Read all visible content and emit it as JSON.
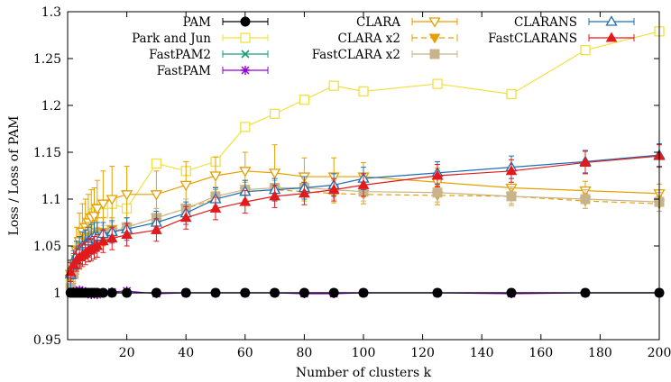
{
  "chart_data": {
    "type": "line",
    "title": "",
    "xlabel": "Number of clusters k",
    "ylabel": "Loss / Loss of PAM",
    "xlim": [
      0,
      200
    ],
    "ylim": [
      0.95,
      1.3
    ],
    "xticks": [
      20,
      40,
      60,
      80,
      100,
      120,
      140,
      160,
      180,
      200
    ],
    "yticks": [
      0.95,
      1,
      1.05,
      1.1,
      1.15,
      1.2,
      1.25,
      1.3
    ],
    "ytick_labels": [
      "0.95",
      "1",
      "1.05",
      "1.1",
      "1.15",
      "1.2",
      "1.25",
      "1.3"
    ],
    "grid": false,
    "legend_position": "top",
    "series": [
      {
        "name": "PAM",
        "color": "#000000",
        "marker": "circle-filled",
        "dashed": false,
        "x": [
          1,
          2,
          3,
          4,
          5,
          6,
          7,
          8,
          9,
          10,
          12,
          15,
          20,
          30,
          40,
          50,
          60,
          70,
          80,
          90,
          100,
          125,
          150,
          175,
          200
        ],
        "y": [
          1,
          1,
          1,
          1,
          1,
          1,
          1,
          1,
          1,
          1,
          1,
          1,
          1,
          1,
          1,
          1,
          1,
          1,
          1,
          1,
          1,
          1,
          1,
          1,
          1
        ],
        "err": [
          0,
          0,
          0,
          0,
          0,
          0,
          0,
          0,
          0,
          0,
          0,
          0,
          0,
          0,
          0,
          0,
          0,
          0,
          0,
          0,
          0,
          0,
          0,
          0,
          0
        ]
      },
      {
        "name": "Park and Jun",
        "color": "#f0e040",
        "marker": "square-open",
        "dashed": false,
        "x": [
          1,
          2,
          3,
          4,
          5,
          6,
          7,
          8,
          9,
          10,
          12,
          15,
          20,
          30,
          40,
          50,
          60,
          70,
          80,
          90,
          100,
          125,
          150,
          175,
          200
        ],
        "y": [
          1.01,
          1.02,
          1.035,
          1.05,
          1.06,
          1.065,
          1.075,
          1.08,
          1.085,
          1.09,
          1.085,
          1.095,
          1.09,
          1.138,
          1.13,
          1.14,
          1.177,
          1.191,
          1.206,
          1.221,
          1.215,
          1.223,
          1.212,
          1.259,
          1.279
        ],
        "err": [
          0.004,
          0.004,
          0.004,
          0.004,
          0.004,
          0.004,
          0.004,
          0.004,
          0.004,
          0.004,
          0.004,
          0.004,
          0.004,
          0.004,
          0.004,
          0.004,
          0.004,
          0.004,
          0.004,
          0.004,
          0.004,
          0.004,
          0.004,
          0.004,
          0.004
        ]
      },
      {
        "name": "FastPAM2",
        "color": "#1a9e77",
        "marker": "x",
        "dashed": false,
        "x": [
          1,
          2,
          3,
          4,
          5,
          6,
          7,
          8,
          9,
          10,
          12,
          15,
          20,
          30,
          40,
          50,
          60,
          70,
          80,
          90,
          100,
          125,
          150,
          175,
          200
        ],
        "y": [
          1,
          1,
          1.001,
          1,
          1,
          1,
          1,
          1,
          1,
          1,
          1,
          1,
          1,
          1,
          1,
          1,
          1,
          1,
          1,
          1,
          1,
          1,
          1,
          1,
          1
        ],
        "err": [
          0.002,
          0.002,
          0.002,
          0.002,
          0.002,
          0.002,
          0.002,
          0.002,
          0.002,
          0.002,
          0.002,
          0.002,
          0.002,
          0.002,
          0.002,
          0.002,
          0.002,
          0.002,
          0.002,
          0.002,
          0.002,
          0.002,
          0.002,
          0.002,
          0.002
        ]
      },
      {
        "name": "FastPAM",
        "color": "#9400d3",
        "marker": "star",
        "dashed": false,
        "x": [
          1,
          2,
          3,
          4,
          5,
          6,
          7,
          8,
          9,
          10,
          12,
          15,
          20,
          30,
          40,
          50,
          60,
          70,
          80,
          90,
          100,
          125,
          150,
          175,
          200
        ],
        "y": [
          1,
          1.001,
          1.002,
          1.003,
          1.002,
          1.001,
          0.999,
          0.998,
          0.999,
          0.998,
          1,
          1.001,
          1.002,
          0.999,
          1,
          1,
          1,
          1,
          0.999,
          0.999,
          1,
          1,
          0.999,
          1,
          1
        ],
        "err": [
          0.002,
          0.002,
          0.002,
          0.002,
          0.002,
          0.002,
          0.002,
          0.002,
          0.002,
          0.002,
          0.002,
          0.002,
          0.002,
          0.002,
          0.002,
          0.002,
          0.002,
          0.002,
          0.002,
          0.002,
          0.002,
          0.002,
          0.002,
          0.002,
          0.002
        ]
      },
      {
        "name": "CLARA",
        "color": "#e69f00",
        "marker": "triangle-down-open",
        "dashed": false,
        "x": [
          1,
          2,
          3,
          4,
          5,
          6,
          7,
          8,
          9,
          10,
          12,
          15,
          20,
          30,
          40,
          50,
          60,
          70,
          80,
          90,
          100,
          125,
          150,
          175,
          200
        ],
        "y": [
          1.02,
          1.03,
          1.045,
          1.055,
          1.065,
          1.07,
          1.075,
          1.08,
          1.082,
          1.09,
          1.095,
          1.1,
          1.105,
          1.105,
          1.115,
          1.125,
          1.13,
          1.128,
          1.124,
          1.124,
          1.124,
          1.118,
          1.112,
          1.109,
          1.106
        ],
        "err": [
          0.015,
          0.02,
          0.025,
          0.03,
          0.03,
          0.03,
          0.03,
          0.03,
          0.03,
          0.03,
          0.035,
          0.035,
          0.03,
          0.025,
          0.025,
          0.02,
          0.02,
          0.03,
          0.02,
          0.02,
          0.015,
          0.015,
          0.01,
          0.01,
          0.01
        ]
      },
      {
        "name": "CLARA x2",
        "color": "#e69f00",
        "marker": "triangle-down-filled",
        "dashed": true,
        "x": [
          1,
          2,
          3,
          4,
          5,
          6,
          7,
          8,
          9,
          10,
          12,
          15,
          20,
          30,
          40,
          50,
          60,
          70,
          80,
          90,
          100,
          125,
          150,
          175,
          200
        ],
        "y": [
          1.015,
          1.025,
          1.035,
          1.045,
          1.05,
          1.055,
          1.06,
          1.06,
          1.062,
          1.065,
          1.065,
          1.068,
          1.07,
          1.08,
          1.09,
          1.1,
          1.108,
          1.11,
          1.108,
          1.106,
          1.105,
          1.104,
          1.103,
          1.098,
          1.095
        ],
        "err": [
          0.01,
          0.015,
          0.015,
          0.015,
          0.015,
          0.015,
          0.015,
          0.015,
          0.015,
          0.015,
          0.015,
          0.012,
          0.01,
          0.01,
          0.01,
          0.01,
          0.01,
          0.01,
          0.01,
          0.01,
          0.01,
          0.01,
          0.008,
          0.008,
          0.008
        ]
      },
      {
        "name": "FastCLARA x2",
        "color": "#c8b48c",
        "marker": "square-filled",
        "dashed": false,
        "x": [
          1,
          2,
          3,
          4,
          5,
          6,
          7,
          8,
          9,
          10,
          12,
          15,
          20,
          30,
          40,
          50,
          60,
          70,
          80,
          90,
          100,
          125,
          150,
          175,
          200
        ],
        "y": [
          1.005,
          1.02,
          1.03,
          1.04,
          1.045,
          1.05,
          1.052,
          1.055,
          1.058,
          1.06,
          1.062,
          1.065,
          1.07,
          1.08,
          1.09,
          1.103,
          1.11,
          1.112,
          1.112,
          1.11,
          1.108,
          1.107,
          1.103,
          1.1,
          1.097
        ],
        "err": [
          0.005,
          0.008,
          0.008,
          0.01,
          0.01,
          0.01,
          0.01,
          0.01,
          0.01,
          0.01,
          0.01,
          0.01,
          0.01,
          0.01,
          0.01,
          0.01,
          0.01,
          0.01,
          0.01,
          0.01,
          0.01,
          0.01,
          0.01,
          0.01,
          0.01
        ]
      },
      {
        "name": "CLARANS",
        "color": "#1f6fb4",
        "marker": "triangle-up-open",
        "dashed": false,
        "x": [
          1,
          2,
          3,
          4,
          5,
          6,
          7,
          8,
          9,
          10,
          12,
          15,
          20,
          30,
          40,
          50,
          60,
          70,
          80,
          90,
          100,
          125,
          150,
          175,
          200
        ],
        "y": [
          1.02,
          1.03,
          1.04,
          1.045,
          1.05,
          1.052,
          1.055,
          1.058,
          1.06,
          1.06,
          1.063,
          1.065,
          1.068,
          1.075,
          1.085,
          1.1,
          1.108,
          1.11,
          1.112,
          1.115,
          1.122,
          1.128,
          1.134,
          1.14,
          1.147
        ],
        "err": [
          0.015,
          0.015,
          0.015,
          0.015,
          0.015,
          0.015,
          0.015,
          0.015,
          0.015,
          0.015,
          0.012,
          0.012,
          0.012,
          0.012,
          0.012,
          0.012,
          0.012,
          0.012,
          0.012,
          0.012,
          0.012,
          0.012,
          0.012,
          0.012,
          0.012
        ]
      },
      {
        "name": "FastCLARANS",
        "color": "#e31a1c",
        "marker": "triangle-up-filled",
        "dashed": false,
        "x": [
          1,
          2,
          3,
          4,
          5,
          6,
          7,
          8,
          9,
          10,
          12,
          15,
          20,
          30,
          40,
          50,
          60,
          70,
          80,
          90,
          100,
          125,
          150,
          175,
          200
        ],
        "y": [
          1.022,
          1.03,
          1.035,
          1.038,
          1.04,
          1.042,
          1.045,
          1.046,
          1.048,
          1.05,
          1.055,
          1.058,
          1.062,
          1.067,
          1.08,
          1.09,
          1.097,
          1.103,
          1.106,
          1.11,
          1.115,
          1.125,
          1.13,
          1.139,
          1.146
        ],
        "err": [
          0.01,
          0.012,
          0.012,
          0.012,
          0.012,
          0.012,
          0.012,
          0.012,
          0.012,
          0.012,
          0.012,
          0.012,
          0.012,
          0.012,
          0.012,
          0.012,
          0.012,
          0.012,
          0.012,
          0.012,
          0.012,
          0.012,
          0.012,
          0.012,
          0.012
        ]
      }
    ]
  }
}
